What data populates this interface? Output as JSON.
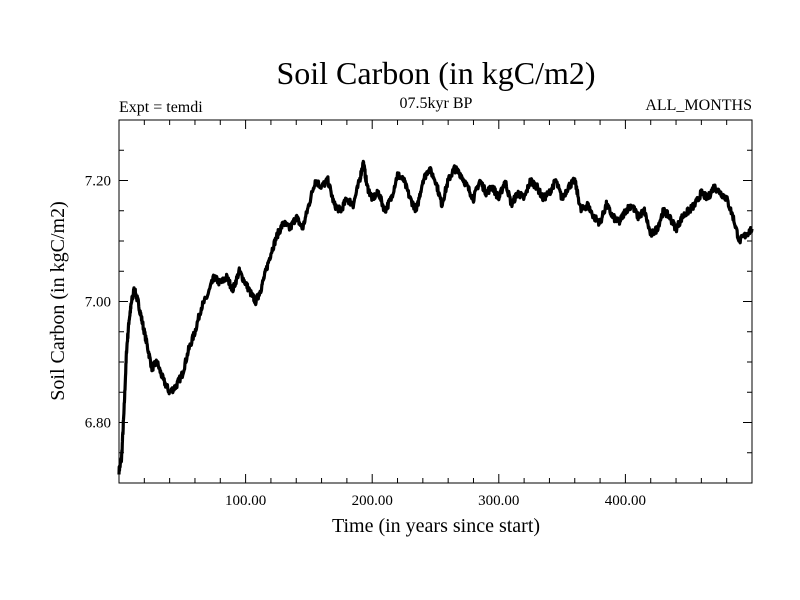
{
  "chart_data": {
    "type": "line",
    "title": "Soil Carbon (in kgC/m2)",
    "subtitle_left": "Expt = temdi",
    "subtitle_center": "07.5kyr BP",
    "subtitle_right": "ALL_MONTHS",
    "xlabel": "Time (in years since start)",
    "ylabel": "Soil Carbon (in kgC/m2)",
    "xlim": [
      0,
      500
    ],
    "ylim": [
      6.7,
      7.3
    ],
    "xticks": [
      100,
      200,
      300,
      400
    ],
    "xtick_labels": [
      "100.00",
      "200.00",
      "300.00",
      "400.00"
    ],
    "yticks": [
      6.8,
      7.0,
      7.2
    ],
    "ytick_labels": [
      "6.80",
      "7.00",
      "7.20"
    ],
    "grid": false,
    "series": [
      {
        "name": "Soil Carbon",
        "x": [
          0,
          2,
          4,
          6,
          8,
          10,
          12,
          15,
          18,
          22,
          26,
          30,
          35,
          40,
          45,
          50,
          55,
          60,
          65,
          70,
          75,
          80,
          85,
          90,
          95,
          100,
          105,
          108,
          112,
          116,
          120,
          125,
          130,
          135,
          140,
          145,
          150,
          155,
          160,
          165,
          170,
          175,
          180,
          185,
          190,
          193,
          196,
          200,
          205,
          210,
          215,
          220,
          225,
          230,
          235,
          240,
          245,
          250,
          255,
          260,
          265,
          270,
          275,
          280,
          285,
          290,
          295,
          300,
          305,
          310,
          315,
          320,
          325,
          330,
          335,
          340,
          345,
          350,
          355,
          360,
          365,
          370,
          375,
          380,
          385,
          390,
          395,
          400,
          405,
          410,
          415,
          420,
          425,
          430,
          435,
          440,
          445,
          450,
          455,
          460,
          465,
          470,
          475,
          480,
          485,
          490,
          495,
          500
        ],
        "y": [
          6.72,
          6.74,
          6.82,
          6.92,
          6.97,
          7.0,
          7.02,
          7.0,
          6.97,
          6.93,
          6.89,
          6.9,
          6.87,
          6.85,
          6.86,
          6.88,
          6.92,
          6.95,
          6.99,
          7.01,
          7.04,
          7.03,
          7.04,
          7.02,
          7.05,
          7.03,
          7.01,
          7.0,
          7.02,
          7.05,
          7.08,
          7.11,
          7.13,
          7.12,
          7.14,
          7.12,
          7.16,
          7.2,
          7.19,
          7.2,
          7.16,
          7.15,
          7.17,
          7.16,
          7.2,
          7.23,
          7.19,
          7.17,
          7.18,
          7.15,
          7.17,
          7.21,
          7.2,
          7.17,
          7.15,
          7.2,
          7.22,
          7.2,
          7.16,
          7.2,
          7.22,
          7.21,
          7.19,
          7.17,
          7.2,
          7.18,
          7.19,
          7.17,
          7.2,
          7.16,
          7.18,
          7.17,
          7.2,
          7.19,
          7.17,
          7.18,
          7.2,
          7.17,
          7.19,
          7.2,
          7.15,
          7.16,
          7.14,
          7.13,
          7.16,
          7.14,
          7.13,
          7.15,
          7.16,
          7.14,
          7.15,
          7.11,
          7.12,
          7.15,
          7.14,
          7.12,
          7.14,
          7.15,
          7.16,
          7.18,
          7.17,
          7.19,
          7.18,
          7.17,
          7.14,
          7.1,
          7.11,
          7.12
        ]
      }
    ]
  }
}
